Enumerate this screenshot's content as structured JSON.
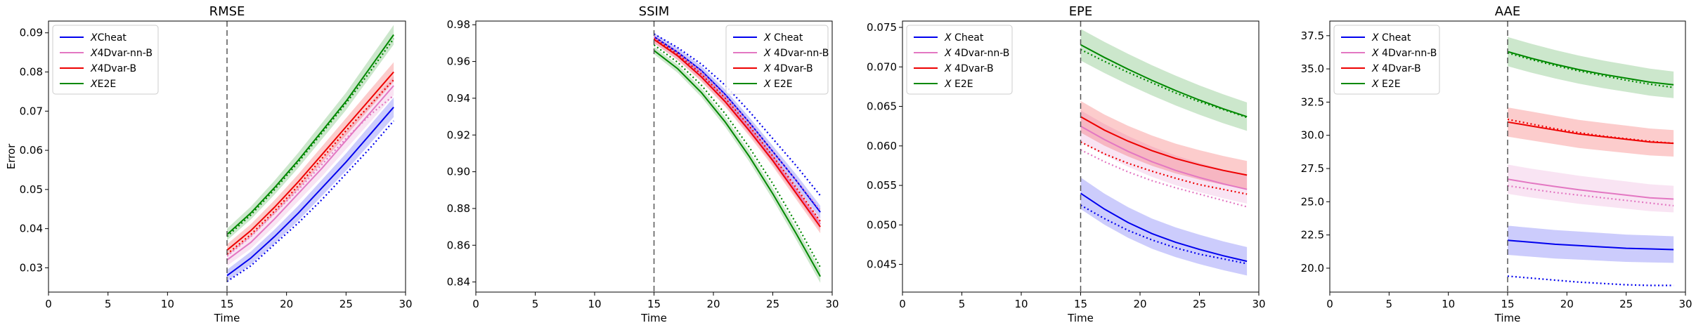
{
  "chart_data": [
    {
      "type": "line",
      "title": "RMSE",
      "xlabel": "Time",
      "ylabel": "Error",
      "xlim": [
        0,
        30
      ],
      "ylim": [
        0.0238,
        0.093
      ],
      "xticks": [
        0,
        5,
        10,
        15,
        20,
        25,
        30
      ],
      "yticks": [
        0.03,
        0.04,
        0.05,
        0.06,
        0.07,
        0.08,
        0.09
      ],
      "ytick_decimals": 2,
      "vline_x": 15,
      "legend_position": "upper-left",
      "band_half_width": [
        0.0015,
        0.0025
      ],
      "x": [
        15,
        17,
        19,
        21,
        23,
        25,
        27,
        29
      ],
      "series": [
        {
          "name": "$X$Cheat",
          "color": "#0000ee",
          "solid": [
            0.028,
            0.0325,
            0.038,
            0.044,
            0.0505,
            0.057,
            0.064,
            0.071
          ],
          "dotted": [
            0.0265,
            0.0305,
            0.036,
            0.0415,
            0.0475,
            0.054,
            0.0605,
            0.0675
          ]
        },
        {
          "name": "$X$4Dvar-nn-B",
          "color": "#e377c2",
          "solid": [
            0.032,
            0.0365,
            0.0425,
            0.049,
            0.0555,
            0.0625,
            0.0695,
            0.0765
          ],
          "dotted": [
            0.033,
            0.038,
            0.044,
            0.05,
            0.0565,
            0.063,
            0.069,
            0.074
          ]
        },
        {
          "name": "$X$4Dvar-B",
          "color": "#ee0000",
          "solid": [
            0.0345,
            0.0395,
            0.0455,
            0.052,
            0.059,
            0.066,
            0.073,
            0.08
          ],
          "dotted": [
            0.0335,
            0.0385,
            0.0445,
            0.051,
            0.058,
            0.065,
            0.0715,
            0.078
          ]
        },
        {
          "name": "$X$E2E",
          "color": "#008800",
          "solid": [
            0.0385,
            0.044,
            0.0505,
            0.0575,
            0.065,
            0.0725,
            0.081,
            0.0895
          ],
          "dotted": [
            0.038,
            0.0435,
            0.05,
            0.057,
            0.0645,
            0.072,
            0.08,
            0.0885
          ]
        }
      ]
    },
    {
      "type": "line",
      "title": "SSIM",
      "xlabel": "Time",
      "ylabel": "",
      "xlim": [
        0,
        30
      ],
      "ylim": [
        0.8345,
        0.982
      ],
      "xticks": [
        0,
        5,
        10,
        15,
        20,
        25,
        30
      ],
      "yticks": [
        0.84,
        0.86,
        0.88,
        0.9,
        0.92,
        0.94,
        0.96,
        0.98
      ],
      "ytick_decimals": 2,
      "vline_x": 15,
      "legend_position": "upper-right",
      "band_half_width": [
        0.002,
        0.0035
      ],
      "x": [
        15,
        17,
        19,
        21,
        23,
        25,
        27,
        29
      ],
      "series": [
        {
          "name": "$X$ Cheat",
          "color": "#0000ee",
          "solid": [
            0.9735,
            0.965,
            0.955,
            0.942,
            0.927,
            0.911,
            0.895,
            0.878
          ],
          "dotted": [
            0.975,
            0.9675,
            0.9585,
            0.947,
            0.933,
            0.918,
            0.903,
            0.887
          ]
        },
        {
          "name": "$X$ 4Dvar-nn-B",
          "color": "#e377c2",
          "solid": [
            0.972,
            0.963,
            0.952,
            0.9385,
            0.9235,
            0.907,
            0.8895,
            0.8715
          ],
          "dotted": [
            0.9735,
            0.965,
            0.9545,
            0.9415,
            0.927,
            0.911,
            0.895,
            0.879
          ]
        },
        {
          "name": "$X$ 4Dvar-B",
          "color": "#ee0000",
          "solid": [
            0.972,
            0.963,
            0.9515,
            0.938,
            0.9225,
            0.906,
            0.888,
            0.87
          ],
          "dotted": [
            0.9725,
            0.964,
            0.953,
            0.94,
            0.925,
            0.9085,
            0.891,
            0.873
          ]
        },
        {
          "name": "$X$ E2E",
          "color": "#008800",
          "solid": [
            0.966,
            0.956,
            0.943,
            0.927,
            0.9085,
            0.888,
            0.866,
            0.843
          ],
          "dotted": [
            0.969,
            0.9595,
            0.947,
            0.9315,
            0.9135,
            0.8935,
            0.8715,
            0.848
          ]
        }
      ]
    },
    {
      "type": "line",
      "title": "EPE",
      "xlabel": "Time",
      "ylabel": "",
      "xlim": [
        0,
        30
      ],
      "ylim": [
        0.0415,
        0.0758
      ],
      "xticks": [
        0,
        5,
        10,
        15,
        20,
        25,
        30
      ],
      "yticks": [
        0.045,
        0.05,
        0.055,
        0.06,
        0.065,
        0.07,
        0.075
      ],
      "ytick_decimals": 3,
      "vline_x": 15,
      "legend_position": "upper-left",
      "band_half_width": [
        0.002,
        0.0018
      ],
      "x": [
        15,
        17,
        19,
        21,
        23,
        25,
        27,
        29
      ],
      "series": [
        {
          "name": "$X$ Cheat",
          "color": "#0000ee",
          "solid": [
            0.054,
            0.052,
            0.0503,
            0.0489,
            0.0478,
            0.0469,
            0.0461,
            0.0454
          ],
          "dotted": [
            0.0525,
            0.0508,
            0.0493,
            0.0481,
            0.0471,
            0.0463,
            0.0457,
            0.0451
          ]
        },
        {
          "name": "$X$ 4Dvar-nn-B",
          "color": "#e377c2",
          "solid": [
            0.0625,
            0.0608,
            0.0593,
            0.058,
            0.0569,
            0.056,
            0.0552,
            0.0545
          ],
          "dotted": [
            0.0595,
            0.058,
            0.0567,
            0.0556,
            0.0547,
            0.0539,
            0.0531,
            0.0523
          ]
        },
        {
          "name": "$X$ 4Dvar-B",
          "color": "#ee0000",
          "solid": [
            0.0637,
            0.062,
            0.0606,
            0.0594,
            0.0584,
            0.0576,
            0.0569,
            0.0563
          ],
          "dotted": [
            0.0605,
            0.059,
            0.0578,
            0.0568,
            0.0559,
            0.0551,
            0.0545,
            0.0539
          ]
        },
        {
          "name": "$X$ E2E",
          "color": "#008800",
          "solid": [
            0.0728,
            0.0712,
            0.0697,
            0.0683,
            0.067,
            0.0658,
            0.0647,
            0.0637
          ],
          "dotted": [
            0.0722,
            0.0707,
            0.0693,
            0.068,
            0.0667,
            0.0656,
            0.0646,
            0.0636
          ]
        }
      ]
    },
    {
      "type": "line",
      "title": "AAE",
      "xlabel": "Time",
      "ylabel": "",
      "xlim": [
        0,
        30
      ],
      "ylim": [
        18.2,
        38.6
      ],
      "xticks": [
        0,
        5,
        10,
        15,
        20,
        25,
        30
      ],
      "yticks": [
        20.0,
        22.5,
        25.0,
        27.5,
        30.0,
        32.5,
        35.0,
        37.5
      ],
      "ytick_decimals": 1,
      "vline_x": 15,
      "legend_position": "upper-left",
      "band_half_width": [
        1.1,
        1.0
      ],
      "x": [
        15,
        17,
        19,
        21,
        23,
        25,
        27,
        29
      ],
      "series": [
        {
          "name": "$X$ Cheat",
          "color": "#0000ee",
          "solid": [
            22.1,
            21.95,
            21.8,
            21.7,
            21.6,
            21.5,
            21.45,
            21.4
          ],
          "dotted": [
            19.4,
            19.25,
            19.1,
            18.95,
            18.85,
            18.75,
            18.7,
            18.7
          ]
        },
        {
          "name": "$X$ 4Dvar-nn-B",
          "color": "#e377c2",
          "solid": [
            26.7,
            26.4,
            26.15,
            25.9,
            25.7,
            25.5,
            25.3,
            25.2
          ],
          "dotted": [
            26.2,
            25.95,
            25.7,
            25.5,
            25.3,
            25.1,
            24.9,
            24.7
          ]
        },
        {
          "name": "$X$ 4Dvar-B",
          "color": "#ee0000",
          "solid": [
            31.0,
            30.7,
            30.4,
            30.1,
            29.9,
            29.7,
            29.5,
            29.4
          ],
          "dotted": [
            31.2,
            30.85,
            30.5,
            30.2,
            29.95,
            29.75,
            29.55,
            29.4
          ]
        },
        {
          "name": "$X$ E2E",
          "color": "#008800",
          "solid": [
            36.3,
            35.8,
            35.35,
            34.95,
            34.6,
            34.3,
            34.0,
            33.8
          ],
          "dotted": [
            36.2,
            35.7,
            35.25,
            34.85,
            34.5,
            34.15,
            33.85,
            33.6
          ]
        }
      ]
    }
  ]
}
